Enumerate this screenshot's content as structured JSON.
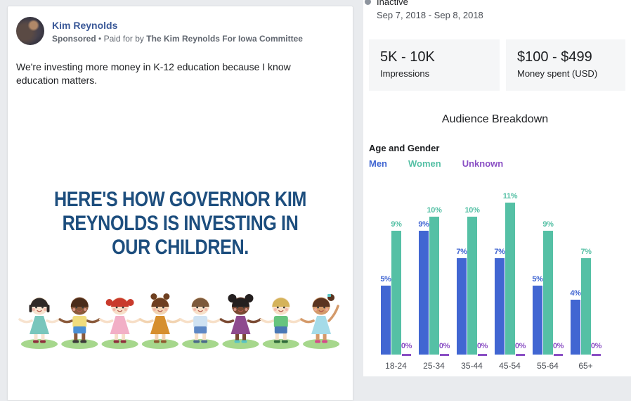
{
  "page": {
    "background": "#e9ebee"
  },
  "ad_card": {
    "page_name": "Kim Reynolds",
    "sponsored_label": "Sponsored",
    "separator": "•",
    "paid_for_by": "Paid for by",
    "funder_name": "The Kim Reynolds For Iowa Committee",
    "body_text": "We're investing more money in K-12 education because I know\neducation matters.",
    "image": {
      "headline": "HERE'S HOW GOVERNOR KIM\nREYNOLDS IS INVESTING IN\nOUR CHILDREN.",
      "headline_color": "#1d4e7e",
      "illustration": {
        "description": "eight cartoon children holding hands on green grass patches",
        "ground_color": "#a6d78c",
        "kids": [
          {
            "type": "dress",
            "style": "bob",
            "skin": "#f7e3cf",
            "hair": "#2f2a28",
            "outfit": "#79c6bc",
            "shoes": "#8e2f3c"
          },
          {
            "type": "shorts",
            "style": "short",
            "skin": "#8a5a3b",
            "hair": "#4a2c1a",
            "outfit": "#f0dc7d",
            "outfit2": "#4a8fd4",
            "shoes": "#3a3a3a"
          },
          {
            "type": "dress",
            "style": "pigtails",
            "skin": "#f7dfc8",
            "hair": "#c93a2c",
            "outfit": "#f2afc6",
            "shoes": "#8e2f3c"
          },
          {
            "type": "dress",
            "style": "buns",
            "skin": "#f2d4b2",
            "hair": "#6e3f20",
            "outfit": "#d68f2e",
            "shoes": "#8e5a2f"
          },
          {
            "type": "shorts",
            "style": "short",
            "skin": "#f7e0c8",
            "hair": "#7d5a3c",
            "outfit": "#cfe2f2",
            "outfit2": "#5d87c4",
            "shoes": "#4a6b8a"
          },
          {
            "type": "dress",
            "style": "puffs",
            "skin": "#7a4a33",
            "hair": "#241f1f",
            "outfit": "#8e4a8e",
            "shoes": "#59c4c4"
          },
          {
            "type": "shorts",
            "style": "short",
            "skin": "#f7e0c8",
            "hair": "#d4b35a",
            "outfit": "#67c47e",
            "outfit2": "#4a78b5",
            "shoes": "#2f6b3a"
          },
          {
            "type": "dress",
            "style": "ponytail",
            "skin": "#d49a6a",
            "hair": "#5a3420",
            "outfit": "#a5dbe8",
            "shoes": "#d44a8a"
          }
        ]
      }
    }
  },
  "details_panel": {
    "status": {
      "label": "Inactive",
      "dot_color": "#8d949e"
    },
    "date_range": "Sep 7, 2018 - Sep 8, 2018",
    "metrics": [
      {
        "value": "5K - 10K",
        "label": "Impressions"
      },
      {
        "value": "$100 - $499",
        "label": "Money spent (USD)"
      }
    ]
  },
  "chart_data": {
    "type": "bar",
    "title": "Audience Breakdown",
    "section_label": "Age and Gender",
    "categories": [
      "18-24",
      "25-34",
      "35-44",
      "45-54",
      "55-64",
      "65+"
    ],
    "series": [
      {
        "name": "Men",
        "color": "#4166d2",
        "values": [
          5,
          9,
          7,
          7,
          5,
          4
        ]
      },
      {
        "name": "Women",
        "color": "#55c0a5",
        "values": [
          9,
          10,
          10,
          11,
          9,
          7
        ]
      },
      {
        "name": "Unknown",
        "color": "#8a4fc4",
        "values": [
          0,
          0,
          0,
          0,
          0,
          0
        ]
      }
    ],
    "value_suffix": "%",
    "ylim": [
      0,
      11
    ],
    "grid": false,
    "legend_position": "top-left",
    "xlabel": "",
    "ylabel": ""
  }
}
